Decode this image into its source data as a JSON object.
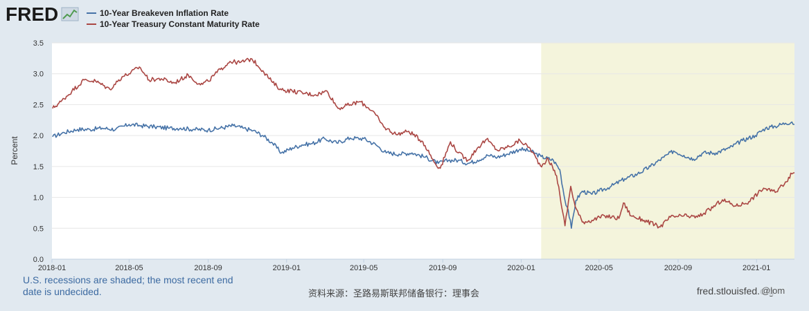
{
  "branding": {
    "logo_text": "FRED",
    "logo_icon": "line-chart-icon"
  },
  "legend": [
    {
      "label": "10-Year Breakeven Inflation Rate",
      "color": "#4572a7"
    },
    {
      "label": "10-Year Treasury Constant Maturity Rate",
      "color": "#aa4643"
    }
  ],
  "footer": {
    "recession_note": "U.S. recessions are shaded; the most recent end date is undecided.",
    "source": "资料来源：圣路易斯联邦储备银行：理事会",
    "url": "fred.stlouisfed.org",
    "watermark": "@lom"
  },
  "chart_data": {
    "type": "line",
    "title": "",
    "xlabel": "",
    "ylabel": "Percent",
    "ylim": [
      0,
      3.5
    ],
    "yticks": [
      "0.0",
      "0.5",
      "1.0",
      "1.5",
      "2.0",
      "2.5",
      "3.0",
      "3.5"
    ],
    "xrange": [
      "2018-01-01",
      "2021-03-01"
    ],
    "xticks": [
      {
        "label": "2018-01",
        "date": "2018-01-01"
      },
      {
        "label": "2018-05",
        "date": "2018-05-01"
      },
      {
        "label": "2018-09",
        "date": "2018-09-01"
      },
      {
        "label": "2019-01",
        "date": "2019-01-01"
      },
      {
        "label": "2019-05",
        "date": "2019-05-01"
      },
      {
        "label": "2019-09",
        "date": "2019-09-01"
      },
      {
        "label": "2020-01",
        "date": "2020-01-01"
      },
      {
        "label": "2020-05",
        "date": "2020-05-01"
      },
      {
        "label": "2020-09",
        "date": "2020-09-01"
      },
      {
        "label": "2021-01",
        "date": "2021-01-01"
      }
    ],
    "grid": true,
    "recession_shading": {
      "start": "2020-02-01",
      "end": "2021-03-01",
      "color": "#f4f4dc"
    },
    "series": [
      {
        "name": "10-Year Breakeven Inflation Rate",
        "color": "#4572a7",
        "points": [
          [
            "2018-01-02",
            1.98
          ],
          [
            "2018-01-20",
            2.05
          ],
          [
            "2018-02-10",
            2.1
          ],
          [
            "2018-03-01",
            2.1
          ],
          [
            "2018-03-20",
            2.12
          ],
          [
            "2018-04-10",
            2.1
          ],
          [
            "2018-05-01",
            2.18
          ],
          [
            "2018-05-20",
            2.16
          ],
          [
            "2018-06-10",
            2.14
          ],
          [
            "2018-07-01",
            2.12
          ],
          [
            "2018-07-20",
            2.12
          ],
          [
            "2018-08-10",
            2.1
          ],
          [
            "2018-09-01",
            2.09
          ],
          [
            "2018-09-20",
            2.12
          ],
          [
            "2018-10-10",
            2.16
          ],
          [
            "2018-10-25",
            2.12
          ],
          [
            "2018-11-10",
            2.08
          ],
          [
            "2018-11-25",
            2.0
          ],
          [
            "2018-12-10",
            1.88
          ],
          [
            "2018-12-24",
            1.72
          ],
          [
            "2019-01-10",
            1.8
          ],
          [
            "2019-01-25",
            1.85
          ],
          [
            "2019-02-10",
            1.87
          ],
          [
            "2019-03-01",
            1.95
          ],
          [
            "2019-03-20",
            1.88
          ],
          [
            "2019-04-10",
            1.96
          ],
          [
            "2019-05-01",
            1.95
          ],
          [
            "2019-05-20",
            1.85
          ],
          [
            "2019-06-05",
            1.72
          ],
          [
            "2019-06-25",
            1.7
          ],
          [
            "2019-07-15",
            1.72
          ],
          [
            "2019-08-05",
            1.65
          ],
          [
            "2019-08-25",
            1.55
          ],
          [
            "2019-09-10",
            1.6
          ],
          [
            "2019-09-25",
            1.6
          ],
          [
            "2019-10-10",
            1.55
          ],
          [
            "2019-10-25",
            1.6
          ],
          [
            "2019-11-10",
            1.68
          ],
          [
            "2019-11-25",
            1.65
          ],
          [
            "2019-12-10",
            1.7
          ],
          [
            "2019-12-30",
            1.78
          ],
          [
            "2020-01-15",
            1.75
          ],
          [
            "2020-02-01",
            1.66
          ],
          [
            "2020-02-20",
            1.6
          ],
          [
            "2020-03-01",
            1.45
          ],
          [
            "2020-03-09",
            0.95
          ],
          [
            "2020-03-14",
            0.8
          ],
          [
            "2020-03-19",
            0.5
          ],
          [
            "2020-03-26",
            0.95
          ],
          [
            "2020-04-05",
            1.1
          ],
          [
            "2020-04-20",
            1.05
          ],
          [
            "2020-05-01",
            1.1
          ],
          [
            "2020-05-20",
            1.18
          ],
          [
            "2020-06-10",
            1.3
          ],
          [
            "2020-06-30",
            1.38
          ],
          [
            "2020-07-20",
            1.5
          ],
          [
            "2020-08-10",
            1.65
          ],
          [
            "2020-08-25",
            1.75
          ],
          [
            "2020-09-10",
            1.68
          ],
          [
            "2020-09-25",
            1.62
          ],
          [
            "2020-10-10",
            1.72
          ],
          [
            "2020-10-30",
            1.72
          ],
          [
            "2020-11-20",
            1.8
          ],
          [
            "2020-12-10",
            1.92
          ],
          [
            "2020-12-30",
            2.0
          ],
          [
            "2021-01-15",
            2.12
          ],
          [
            "2021-01-30",
            2.15
          ],
          [
            "2021-02-15",
            2.2
          ],
          [
            "2021-02-25",
            2.22
          ],
          [
            "2021-03-01",
            2.18
          ]
        ]
      },
      {
        "name": "10-Year Treasury Constant Maturity Rate",
        "color": "#aa4643",
        "points": [
          [
            "2018-01-02",
            2.44
          ],
          [
            "2018-01-15",
            2.55
          ],
          [
            "2018-02-01",
            2.72
          ],
          [
            "2018-02-20",
            2.9
          ],
          [
            "2018-03-10",
            2.88
          ],
          [
            "2018-04-01",
            2.75
          ],
          [
            "2018-04-20",
            2.95
          ],
          [
            "2018-05-01",
            3.0
          ],
          [
            "2018-05-17",
            3.11
          ],
          [
            "2018-06-01",
            2.9
          ],
          [
            "2018-06-20",
            2.92
          ],
          [
            "2018-07-10",
            2.85
          ],
          [
            "2018-08-01",
            2.98
          ],
          [
            "2018-08-20",
            2.82
          ],
          [
            "2018-09-01",
            2.88
          ],
          [
            "2018-09-20",
            3.07
          ],
          [
            "2018-10-05",
            3.2
          ],
          [
            "2018-10-20",
            3.18
          ],
          [
            "2018-11-08",
            3.24
          ],
          [
            "2018-11-25",
            3.05
          ],
          [
            "2018-12-10",
            2.86
          ],
          [
            "2018-12-24",
            2.74
          ],
          [
            "2019-01-10",
            2.72
          ],
          [
            "2019-01-30",
            2.68
          ],
          [
            "2019-02-15",
            2.66
          ],
          [
            "2019-03-05",
            2.72
          ],
          [
            "2019-03-22",
            2.44
          ],
          [
            "2019-04-10",
            2.5
          ],
          [
            "2019-04-25",
            2.55
          ],
          [
            "2019-05-15",
            2.4
          ],
          [
            "2019-06-01",
            2.14
          ],
          [
            "2019-06-20",
            2.02
          ],
          [
            "2019-07-10",
            2.07
          ],
          [
            "2019-08-01",
            1.9
          ],
          [
            "2019-08-20",
            1.55
          ],
          [
            "2019-08-28",
            1.47
          ],
          [
            "2019-09-13",
            1.9
          ],
          [
            "2019-09-25",
            1.72
          ],
          [
            "2019-10-10",
            1.6
          ],
          [
            "2019-10-25",
            1.8
          ],
          [
            "2019-11-08",
            1.94
          ],
          [
            "2019-11-25",
            1.76
          ],
          [
            "2019-12-13",
            1.82
          ],
          [
            "2019-12-30",
            1.92
          ],
          [
            "2020-01-15",
            1.79
          ],
          [
            "2020-01-31",
            1.51
          ],
          [
            "2020-02-12",
            1.62
          ],
          [
            "2020-02-25",
            1.35
          ],
          [
            "2020-03-01",
            1.05
          ],
          [
            "2020-03-09",
            0.54
          ],
          [
            "2020-03-18",
            1.18
          ],
          [
            "2020-03-25",
            0.85
          ],
          [
            "2020-04-05",
            0.6
          ],
          [
            "2020-04-20",
            0.63
          ],
          [
            "2020-05-10",
            0.7
          ],
          [
            "2020-06-01",
            0.66
          ],
          [
            "2020-06-08",
            0.91
          ],
          [
            "2020-06-20",
            0.7
          ],
          [
            "2020-07-10",
            0.63
          ],
          [
            "2020-08-04",
            0.52
          ],
          [
            "2020-08-20",
            0.68
          ],
          [
            "2020-09-10",
            0.7
          ],
          [
            "2020-10-01",
            0.68
          ],
          [
            "2020-10-20",
            0.8
          ],
          [
            "2020-11-09",
            0.96
          ],
          [
            "2020-11-30",
            0.86
          ],
          [
            "2020-12-20",
            0.93
          ],
          [
            "2021-01-12",
            1.15
          ],
          [
            "2021-01-30",
            1.08
          ],
          [
            "2021-02-15",
            1.25
          ],
          [
            "2021-02-25",
            1.38
          ],
          [
            "2021-03-01",
            1.4
          ]
        ]
      }
    ]
  }
}
